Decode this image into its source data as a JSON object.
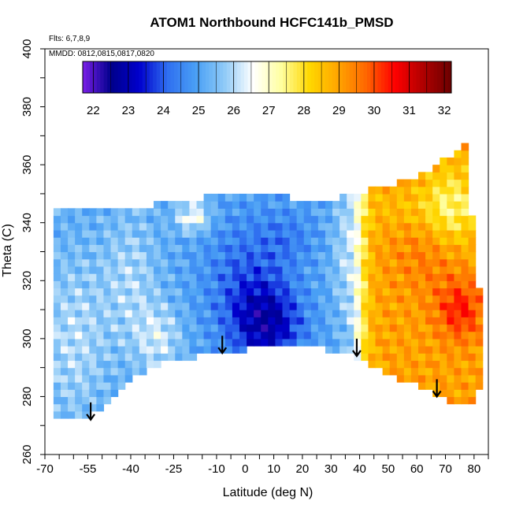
{
  "chart_data": {
    "type": "heatmap",
    "title": "ATOM1 Northbound HCFC141b_PMSD",
    "annotations": [
      "Flts: 6,7,8,9",
      "MMDD: 0812,0815,0817,0820"
    ],
    "xlabel": "Latitude (deg N)",
    "ylabel": "Theta (C)",
    "xlim": [
      -70,
      85
    ],
    "ylim": [
      260,
      400
    ],
    "x_ticks": [
      -70,
      -55,
      -40,
      -25,
      -10,
      0,
      10,
      20,
      30,
      40,
      50,
      60,
      70,
      80
    ],
    "y_ticks": [
      260,
      280,
      300,
      320,
      340,
      360,
      380,
      400
    ],
    "colorbar": {
      "ticks": [
        22,
        23,
        24,
        25,
        26,
        27,
        28,
        29,
        30,
        31,
        32
      ],
      "range": [
        21.7,
        32.2
      ],
      "colors": [
        "#7b1fe8",
        "#00008b",
        "#0000cd",
        "#2f6ff0",
        "#4aa0f5",
        "#8fcaf7",
        "#ffffff",
        "#ffffa0",
        "#ffd700",
        "#ffa500",
        "#ff6600",
        "#ff0000",
        "#b00000",
        "#6b0000"
      ]
    },
    "region_boundary": {
      "top": [
        [
          -67,
          345
        ],
        [
          -50,
          345
        ],
        [
          -45,
          346
        ],
        [
          -33,
          346
        ],
        [
          -23,
          348
        ],
        [
          -10,
          349
        ],
        [
          -4,
          350
        ],
        [
          10,
          350
        ],
        [
          20,
          348
        ],
        [
          30,
          348
        ],
        [
          38,
          350
        ],
        [
          50,
          353
        ],
        [
          62,
          357
        ],
        [
          70,
          362
        ],
        [
          76,
          365
        ],
        [
          77,
          368
        ],
        [
          78,
          358
        ],
        [
          79,
          345
        ],
        [
          80,
          335
        ],
        [
          81,
          325
        ],
        [
          82,
          315
        ],
        [
          82,
          300
        ],
        [
          82,
          285
        ],
        [
          81,
          277
        ]
      ],
      "bottom": [
        [
          79,
          277
        ],
        [
          73,
          278
        ],
        [
          66,
          281
        ],
        [
          50,
          288
        ],
        [
          38,
          294
        ],
        [
          32,
          296
        ],
        [
          20,
          297
        ],
        [
          10,
          298
        ],
        [
          0,
          296
        ],
        [
          -10,
          295
        ],
        [
          -20,
          293
        ],
        [
          -28,
          292
        ],
        [
          -35,
          289
        ],
        [
          -40,
          287
        ],
        [
          -48,
          278
        ],
        [
          -53,
          274
        ],
        [
          -57,
          272
        ],
        [
          -67,
          272
        ],
        [
          -67,
          310
        ]
      ]
    },
    "arrows_latitude": [
      -54,
      -8,
      39,
      67
    ],
    "cells_note": "PMSD values shown as colored grid cells over latitude/theta"
  }
}
